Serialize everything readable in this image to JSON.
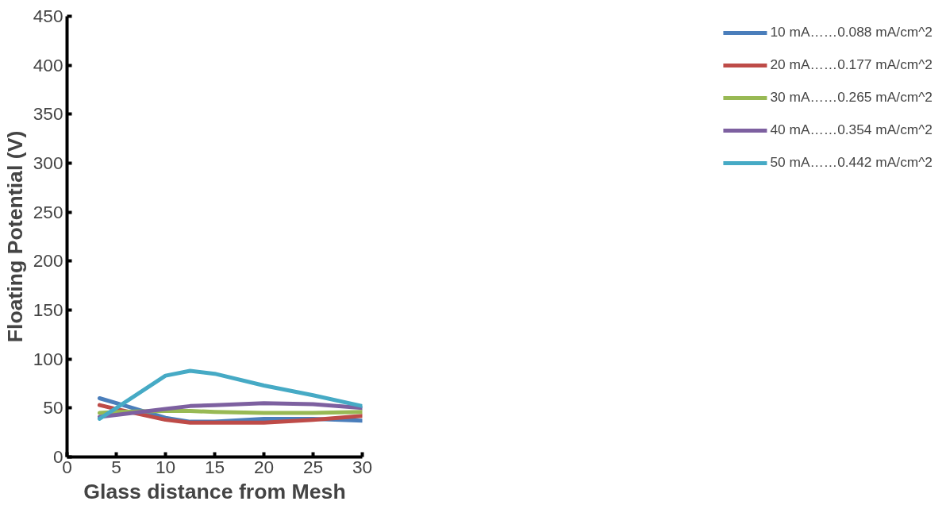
{
  "chart_data": {
    "type": "line",
    "xlabel": "Glass distance from Mesh",
    "ylabel": "Floating Potential (V)",
    "x": [
      3.3,
      5,
      10,
      12.5,
      15,
      20,
      25,
      30
    ],
    "series": [
      {
        "name": "10 mA……0.088 mA/cm^2",
        "color": "#4a7ebb",
        "values": [
          60,
          55,
          40,
          36,
          36,
          39,
          39,
          37
        ]
      },
      {
        "name": "20 mA……0.177 mA/cm^2",
        "color": "#be4b48",
        "values": [
          53,
          49,
          38,
          35,
          35,
          35,
          38,
          42
        ]
      },
      {
        "name": "30 mA……0.265 mA/cm^2",
        "color": "#98b954",
        "values": [
          45,
          46,
          47,
          47,
          46,
          45,
          45,
          46
        ]
      },
      {
        "name": "40 mA……0.354 mA/cm^2",
        "color": "#7d60a0",
        "values": [
          41,
          43,
          49,
          52,
          53,
          55,
          54,
          50
        ]
      },
      {
        "name": "50 mA……0.442 mA/cm^2",
        "color": "#46aac5",
        "values": [
          39,
          50,
          83,
          88,
          85,
          73,
          63,
          52
        ]
      }
    ],
    "xlim": [
      0,
      30
    ],
    "ylim": [
      0,
      450
    ],
    "xticks": [
      0,
      5,
      10,
      15,
      20,
      25,
      30
    ],
    "yticks": [
      0,
      50,
      100,
      150,
      200,
      250,
      300,
      350,
      400,
      450
    ],
    "grid": false,
    "legend": "right",
    "marker": "none",
    "line_style": "solid"
  }
}
